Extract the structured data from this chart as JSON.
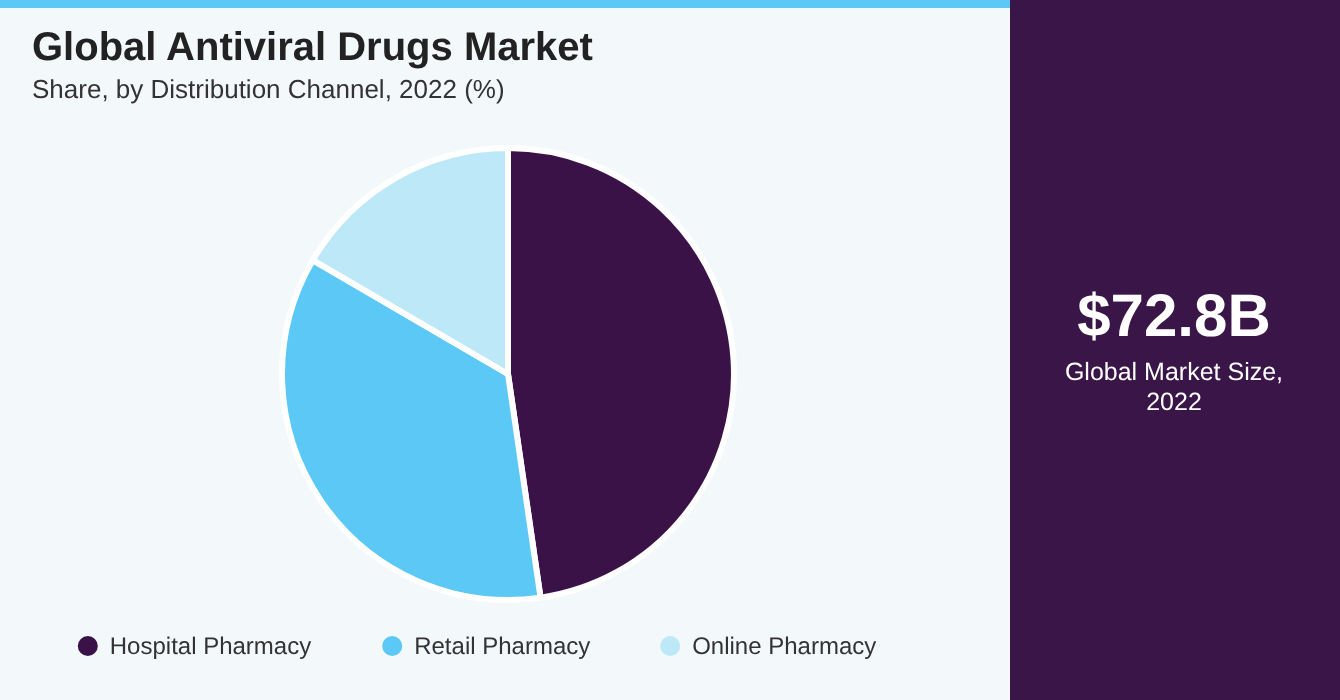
{
  "chart_data": {
    "type": "pie",
    "title": "Global Antiviral Drugs Market",
    "subtitle": "Share, by Distribution Channel, 2022 (%)",
    "categories": [
      "Hospital Pharmacy",
      "Retail Pharmacy",
      "Online Pharmacy"
    ],
    "values": [
      47.7,
      35.7,
      16.6
    ],
    "colors": [
      "#3b1248",
      "#5bc8f5",
      "#bde8f8"
    ],
    "legend": "bottom",
    "annotations": [
      "$72.8B",
      "Global Market Size, 2022"
    ]
  }
}
